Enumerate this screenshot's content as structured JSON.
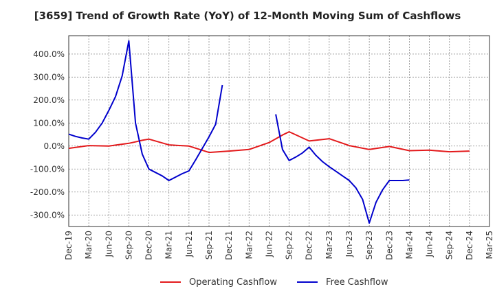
{
  "chart_data": {
    "type": "line",
    "title": "[3659]  Trend of Growth Rate (YoY) of 12-Month Moving Sum of Cashflows",
    "xlabel": "",
    "ylabel": "",
    "ylim": [
      -350,
      480
    ],
    "y_ticks": [
      400,
      300,
      200,
      100,
      0,
      -100,
      -200,
      -300
    ],
    "y_tick_labels": [
      "400.0%",
      "300.0%",
      "200.0%",
      "100.0%",
      "0.0%",
      "-100.0%",
      "-200.0%",
      "-300.0%"
    ],
    "x_ticks": [
      "Dec-19",
      "Mar-20",
      "Jun-20",
      "Sep-20",
      "Dec-20",
      "Mar-21",
      "Jun-21",
      "Sep-21",
      "Dec-21",
      "Mar-22",
      "Jun-22",
      "Sep-22",
      "Dec-22",
      "Mar-23",
      "Jun-23",
      "Sep-23",
      "Dec-23",
      "Mar-24",
      "Jun-24",
      "Sep-24",
      "Dec-24",
      "Mar-25"
    ],
    "grid": true,
    "legend_position": "bottom",
    "series": [
      {
        "name": "Operating Cashflow",
        "color": "#e31a1c",
        "points": [
          [
            "Dec-19",
            -10
          ],
          [
            "Mar-20",
            2
          ],
          [
            "Jun-20",
            0
          ],
          [
            "Sep-20",
            12
          ],
          [
            "Oct-20",
            18
          ],
          [
            "Nov-20",
            25
          ],
          [
            "Dec-20",
            30
          ],
          [
            "Mar-21",
            5
          ],
          [
            "Jun-21",
            0
          ],
          [
            "Sep-21",
            -28
          ],
          [
            "Dec-21",
            -22
          ],
          [
            "Mar-22",
            -15
          ],
          [
            "Jun-22",
            15
          ],
          [
            "Aug-22",
            48
          ],
          [
            "Sep-22",
            62
          ],
          [
            "Dec-22",
            22
          ],
          [
            "Mar-23",
            32
          ],
          [
            "Jun-23",
            2
          ],
          [
            "Sep-23",
            -15
          ],
          [
            "Dec-23",
            -2
          ],
          [
            "Mar-24",
            -20
          ],
          [
            "Jun-24",
            -18
          ],
          [
            "Sep-24",
            -25
          ],
          [
            "Dec-24",
            -22
          ]
        ]
      },
      {
        "name": "Free Cashflow",
        "color": "#0000cc",
        "points": [
          [
            "Dec-19",
            52
          ],
          [
            "Jan-20",
            42
          ],
          [
            "Feb-20",
            35
          ],
          [
            "Mar-20",
            30
          ],
          [
            "Apr-20",
            60
          ],
          [
            "May-20",
            100
          ],
          [
            "Jun-20",
            155
          ],
          [
            "Jul-20",
            215
          ],
          [
            "Aug-20",
            305
          ],
          [
            "Sep-20",
            458
          ],
          [
            "Oct-20",
            100
          ],
          [
            "Nov-20",
            -35
          ],
          [
            "Dec-20",
            -100
          ],
          [
            "Jan-21",
            -115
          ],
          [
            "Feb-21",
            -130
          ],
          [
            "Mar-21",
            -150
          ],
          [
            "Apr-21",
            -135
          ],
          [
            "May-21",
            -120
          ],
          [
            "Jun-21",
            -108
          ],
          [
            "Jul-21",
            -60
          ],
          [
            "Aug-21",
            -10
          ],
          [
            "Sep-21",
            40
          ],
          [
            "Oct-21",
            95
          ],
          [
            "Nov-21",
            265
          ],
          null,
          [
            "Jul-22",
            138
          ],
          [
            "Aug-22",
            -15
          ],
          [
            "Sep-22",
            -63
          ],
          [
            "Oct-22",
            -48
          ],
          [
            "Nov-22",
            -30
          ],
          [
            "Dec-22",
            -5
          ],
          [
            "Jan-23",
            -40
          ],
          [
            "Feb-23",
            -68
          ],
          [
            "Mar-23",
            -90
          ],
          [
            "Apr-23",
            -110
          ],
          [
            "May-23",
            -130
          ],
          [
            "Jun-23",
            -150
          ],
          [
            "Jul-23",
            -182
          ],
          [
            "Aug-23",
            -232
          ],
          [
            "Sep-23",
            -335
          ],
          [
            "Oct-23",
            -245
          ],
          [
            "Nov-23",
            -190
          ],
          [
            "Dec-23",
            -150
          ],
          [
            "Jan-24",
            -150
          ],
          [
            "Feb-24",
            -150
          ],
          [
            "Mar-24",
            -148
          ]
        ]
      }
    ]
  }
}
